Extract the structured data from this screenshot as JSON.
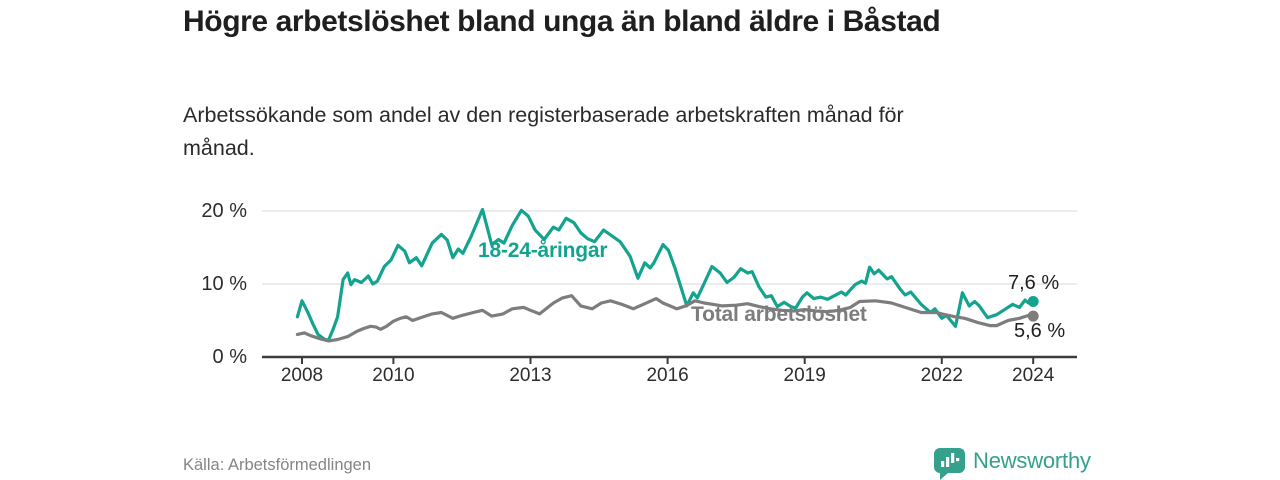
{
  "title": "Högre arbetslöshet bland unga än bland äldre i Båstad",
  "subtitle": "Arbetssökande som andel av den registerbaserade arbetskraften månad för månad.",
  "source": "Källa: Arbetsförmedlingen",
  "logo": {
    "text": "Newsworthy",
    "icon": "bar-chart-badge-icon",
    "color": "#35a08c"
  },
  "colors": {
    "young_line": "#14a38f",
    "total_line": "#7d7d7d",
    "gridline": "#d9d9d9",
    "axis": "#3c3c3c",
    "title_text": "#1f1f1f",
    "muted_text": "#85858a"
  },
  "chart_data": {
    "type": "line",
    "title": "Högre arbetslöshet bland unga än bland äldre i Båstad",
    "subtitle": "Arbetssökande som andel av den registerbaserade arbetskraften månad för månad.",
    "unit": "%",
    "grid": "horizontal",
    "legend_position": "inline-labels",
    "xlim": [
      2007.1,
      2025.0
    ],
    "ylim": [
      0,
      21.8
    ],
    "y_ticks": [
      20,
      10,
      0
    ],
    "y_tick_labels": [
      "20 %",
      "10 %",
      "0 %"
    ],
    "x_ticks": [
      2008,
      2010,
      2013,
      2016,
      2019,
      2022,
      2024
    ],
    "x_tick_labels": [
      "2008",
      "2010",
      "2013",
      "2016",
      "2019",
      "2022",
      "2024"
    ],
    "series": [
      {
        "name": "18-24-åringar",
        "color": "#14a38f",
        "end_label": "7,6 %",
        "end_value": 7.6,
        "points": [
          [
            2007.9,
            5.5
          ],
          [
            2008.0,
            7.7
          ],
          [
            2008.13,
            6.1
          ],
          [
            2008.24,
            4.5
          ],
          [
            2008.35,
            3.1
          ],
          [
            2008.5,
            2.4
          ],
          [
            2008.58,
            2.3
          ],
          [
            2008.68,
            3.8
          ],
          [
            2008.78,
            5.5
          ],
          [
            2008.9,
            10.6
          ],
          [
            2009.0,
            11.5
          ],
          [
            2009.07,
            9.9
          ],
          [
            2009.15,
            10.6
          ],
          [
            2009.3,
            10.2
          ],
          [
            2009.45,
            11.1
          ],
          [
            2009.55,
            10.0
          ],
          [
            2009.65,
            10.4
          ],
          [
            2009.8,
            12.4
          ],
          [
            2009.95,
            13.3
          ],
          [
            2010.1,
            15.3
          ],
          [
            2010.25,
            14.5
          ],
          [
            2010.35,
            12.9
          ],
          [
            2010.5,
            13.6
          ],
          [
            2010.62,
            12.5
          ],
          [
            2010.85,
            15.6
          ],
          [
            2011.05,
            16.8
          ],
          [
            2011.18,
            16.0
          ],
          [
            2011.3,
            13.6
          ],
          [
            2011.42,
            14.8
          ],
          [
            2011.52,
            14.2
          ],
          [
            2011.7,
            16.5
          ],
          [
            2011.95,
            20.2
          ],
          [
            2012.15,
            15.4
          ],
          [
            2012.3,
            16.1
          ],
          [
            2012.42,
            15.6
          ],
          [
            2012.6,
            18.0
          ],
          [
            2012.8,
            20.1
          ],
          [
            2012.95,
            19.3
          ],
          [
            2013.1,
            17.4
          ],
          [
            2013.3,
            16.1
          ],
          [
            2013.5,
            17.8
          ],
          [
            2013.62,
            17.4
          ],
          [
            2013.78,
            19.0
          ],
          [
            2013.95,
            18.4
          ],
          [
            2014.1,
            17.0
          ],
          [
            2014.25,
            16.2
          ],
          [
            2014.4,
            15.8
          ],
          [
            2014.6,
            17.4
          ],
          [
            2014.78,
            16.6
          ],
          [
            2014.96,
            15.8
          ],
          [
            2015.18,
            13.8
          ],
          [
            2015.35,
            10.8
          ],
          [
            2015.5,
            12.9
          ],
          [
            2015.62,
            12.2
          ],
          [
            2015.7,
            12.9
          ],
          [
            2015.9,
            15.4
          ],
          [
            2016.02,
            14.6
          ],
          [
            2016.16,
            12.2
          ],
          [
            2016.42,
            7.0
          ],
          [
            2016.56,
            8.8
          ],
          [
            2016.65,
            8.1
          ],
          [
            2016.8,
            10.1
          ],
          [
            2016.97,
            12.4
          ],
          [
            2017.15,
            11.5
          ],
          [
            2017.3,
            10.2
          ],
          [
            2017.45,
            10.9
          ],
          [
            2017.6,
            12.1
          ],
          [
            2017.75,
            11.5
          ],
          [
            2017.85,
            11.7
          ],
          [
            2018.0,
            9.6
          ],
          [
            2018.15,
            8.2
          ],
          [
            2018.27,
            8.4
          ],
          [
            2018.4,
            6.9
          ],
          [
            2018.55,
            7.5
          ],
          [
            2018.7,
            6.9
          ],
          [
            2018.8,
            6.7
          ],
          [
            2018.95,
            8.2
          ],
          [
            2019.05,
            8.8
          ],
          [
            2019.2,
            8.0
          ],
          [
            2019.35,
            8.2
          ],
          [
            2019.5,
            7.9
          ],
          [
            2019.65,
            8.4
          ],
          [
            2019.8,
            8.9
          ],
          [
            2019.9,
            8.5
          ],
          [
            2020.1,
            9.9
          ],
          [
            2020.25,
            10.4
          ],
          [
            2020.33,
            10.1
          ],
          [
            2020.42,
            12.3
          ],
          [
            2020.52,
            11.4
          ],
          [
            2020.62,
            11.9
          ],
          [
            2020.8,
            10.7
          ],
          [
            2020.9,
            11.0
          ],
          [
            2021.1,
            9.2
          ],
          [
            2021.2,
            8.5
          ],
          [
            2021.32,
            8.9
          ],
          [
            2021.55,
            7.2
          ],
          [
            2021.75,
            6.1
          ],
          [
            2021.85,
            6.6
          ],
          [
            2022.0,
            5.3
          ],
          [
            2022.1,
            5.7
          ],
          [
            2022.3,
            4.2
          ],
          [
            2022.45,
            8.8
          ],
          [
            2022.6,
            7.0
          ],
          [
            2022.72,
            7.6
          ],
          [
            2022.82,
            7.0
          ],
          [
            2023.0,
            5.4
          ],
          [
            2023.2,
            5.8
          ],
          [
            2023.4,
            6.6
          ],
          [
            2023.55,
            7.2
          ],
          [
            2023.7,
            6.8
          ],
          [
            2023.82,
            7.8
          ],
          [
            2023.9,
            7.4
          ],
          [
            2024.0,
            7.6
          ]
        ]
      },
      {
        "name": "Total arbetslöshet",
        "color": "#7d7d7d",
        "end_label": "5,6 %",
        "end_value": 5.6,
        "points": [
          [
            2007.9,
            3.1
          ],
          [
            2008.05,
            3.3
          ],
          [
            2008.2,
            2.9
          ],
          [
            2008.4,
            2.5
          ],
          [
            2008.58,
            2.2
          ],
          [
            2008.78,
            2.4
          ],
          [
            2009.0,
            2.8
          ],
          [
            2009.2,
            3.5
          ],
          [
            2009.35,
            3.9
          ],
          [
            2009.5,
            4.2
          ],
          [
            2009.62,
            4.1
          ],
          [
            2009.72,
            3.8
          ],
          [
            2009.85,
            4.2
          ],
          [
            2010.0,
            4.9
          ],
          [
            2010.15,
            5.3
          ],
          [
            2010.28,
            5.5
          ],
          [
            2010.42,
            5.0
          ],
          [
            2010.6,
            5.4
          ],
          [
            2010.85,
            5.9
          ],
          [
            2011.05,
            6.1
          ],
          [
            2011.3,
            5.3
          ],
          [
            2011.5,
            5.7
          ],
          [
            2011.75,
            6.1
          ],
          [
            2011.95,
            6.4
          ],
          [
            2012.15,
            5.6
          ],
          [
            2012.4,
            5.9
          ],
          [
            2012.6,
            6.6
          ],
          [
            2012.85,
            6.8
          ],
          [
            2013.0,
            6.4
          ],
          [
            2013.2,
            5.9
          ],
          [
            2013.5,
            7.4
          ],
          [
            2013.7,
            8.1
          ],
          [
            2013.9,
            8.4
          ],
          [
            2014.1,
            7.0
          ],
          [
            2014.35,
            6.6
          ],
          [
            2014.55,
            7.4
          ],
          [
            2014.75,
            7.7
          ],
          [
            2015.0,
            7.2
          ],
          [
            2015.25,
            6.6
          ],
          [
            2015.5,
            7.3
          ],
          [
            2015.75,
            8.0
          ],
          [
            2015.9,
            7.4
          ],
          [
            2016.05,
            7.0
          ],
          [
            2016.2,
            6.6
          ],
          [
            2016.4,
            7.0
          ],
          [
            2016.6,
            7.7
          ],
          [
            2016.8,
            7.4
          ],
          [
            2017.0,
            7.2
          ],
          [
            2017.2,
            7.0
          ],
          [
            2017.5,
            7.1
          ],
          [
            2017.75,
            7.3
          ],
          [
            2018.0,
            6.9
          ],
          [
            2018.25,
            6.6
          ],
          [
            2018.5,
            6.4
          ],
          [
            2018.75,
            6.3
          ],
          [
            2019.0,
            6.5
          ],
          [
            2019.25,
            6.3
          ],
          [
            2019.5,
            6.2
          ],
          [
            2019.75,
            6.4
          ],
          [
            2020.0,
            6.8
          ],
          [
            2020.2,
            7.6
          ],
          [
            2020.55,
            7.7
          ],
          [
            2020.9,
            7.4
          ],
          [
            2021.2,
            6.8
          ],
          [
            2021.55,
            6.1
          ],
          [
            2021.9,
            6.1
          ],
          [
            2022.0,
            5.9
          ],
          [
            2022.3,
            5.5
          ],
          [
            2022.5,
            5.3
          ],
          [
            2022.8,
            4.7
          ],
          [
            2023.05,
            4.3
          ],
          [
            2023.2,
            4.3
          ],
          [
            2023.45,
            5.0
          ],
          [
            2023.7,
            5.3
          ],
          [
            2023.9,
            5.7
          ],
          [
            2024.0,
            5.6
          ]
        ]
      }
    ]
  }
}
